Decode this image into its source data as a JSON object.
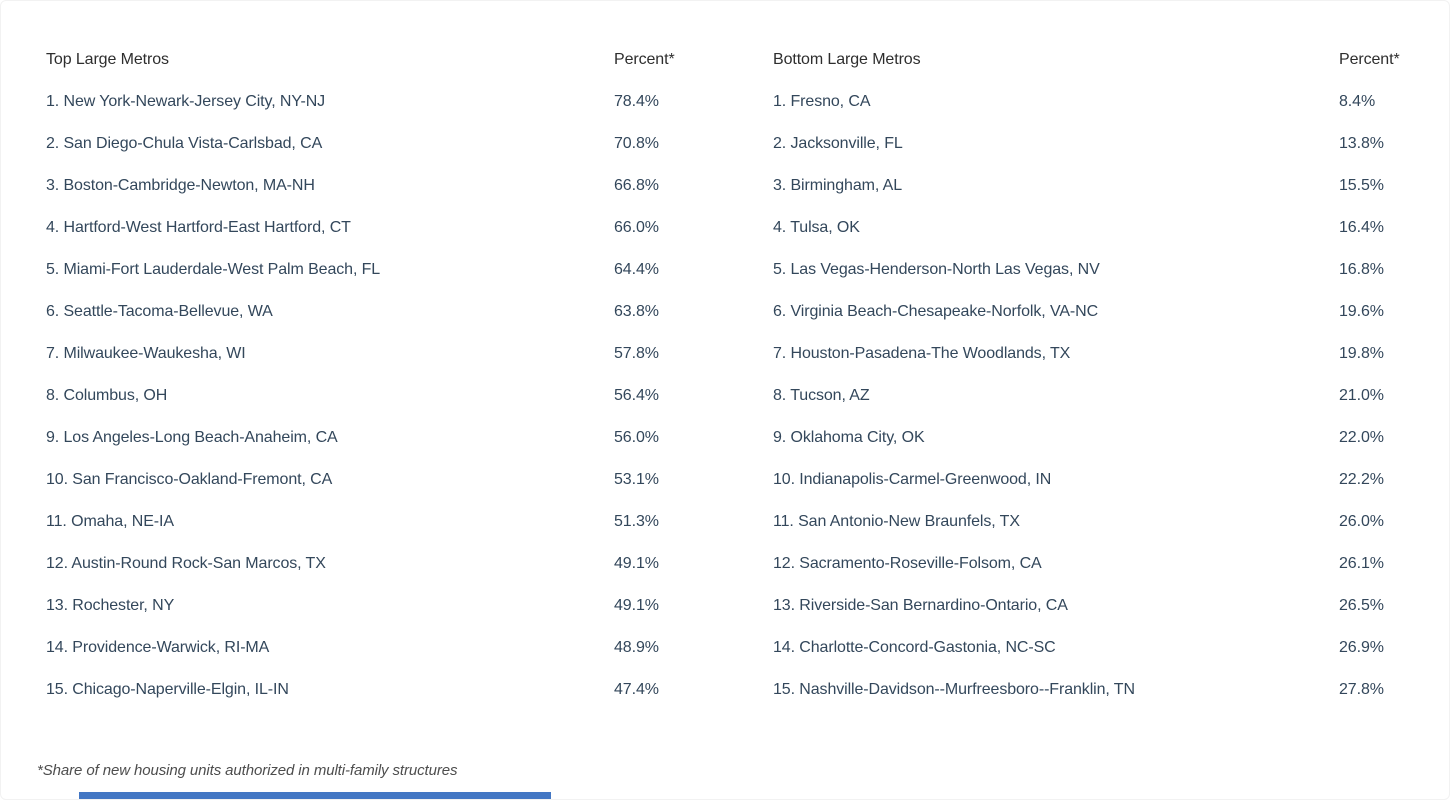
{
  "footnote": "*Share of new housing units authorized in multi-family structures",
  "colors": {
    "row_text": "#33475b",
    "header_text": "#2e2e2e",
    "footnote_text": "#4d4d4d",
    "accent_bar": "#4377c4",
    "background": "#ffffff"
  },
  "chart_data": [
    {
      "type": "table",
      "title": "Top Large Metros",
      "columns": [
        "Top Large Metros",
        "Percent*"
      ],
      "ylabel": "Share of new housing units authorized in multi-family structures (%)",
      "rows": [
        {
          "label": "1. New York-Newark-Jersey City, NY-NJ",
          "percent": "78.4%",
          "value": 78.4
        },
        {
          "label": "2. San Diego-Chula Vista-Carlsbad, CA",
          "percent": "70.8%",
          "value": 70.8
        },
        {
          "label": "3. Boston-Cambridge-Newton, MA-NH",
          "percent": "66.8%",
          "value": 66.8
        },
        {
          "label": "4. Hartford-West Hartford-East Hartford, CT",
          "percent": "66.0%",
          "value": 66.0
        },
        {
          "label": "5. Miami-Fort Lauderdale-West Palm Beach, FL",
          "percent": "64.4%",
          "value": 64.4
        },
        {
          "label": "6. Seattle-Tacoma-Bellevue, WA",
          "percent": "63.8%",
          "value": 63.8
        },
        {
          "label": "7. Milwaukee-Waukesha, WI",
          "percent": "57.8%",
          "value": 57.8
        },
        {
          "label": "8. Columbus, OH",
          "percent": "56.4%",
          "value": 56.4
        },
        {
          "label": "9. Los Angeles-Long Beach-Anaheim, CA",
          "percent": "56.0%",
          "value": 56.0
        },
        {
          "label": "10. San Francisco-Oakland-Fremont, CA",
          "percent": "53.1%",
          "value": 53.1
        },
        {
          "label": "11. Omaha, NE-IA",
          "percent": "51.3%",
          "value": 51.3
        },
        {
          "label": "12. Austin-Round Rock-San Marcos, TX",
          "percent": "49.1%",
          "value": 49.1
        },
        {
          "label": "13. Rochester, NY",
          "percent": "49.1%",
          "value": 49.1
        },
        {
          "label": "14. Providence-Warwick, RI-MA",
          "percent": "48.9%",
          "value": 48.9
        },
        {
          "label": "15. Chicago-Naperville-Elgin, IL-IN",
          "percent": "47.4%",
          "value": 47.4
        }
      ]
    },
    {
      "type": "table",
      "title": "Bottom Large Metros",
      "columns": [
        "Bottom Large Metros",
        "Percent*"
      ],
      "ylabel": "Share of new housing units authorized in multi-family structures (%)",
      "rows": [
        {
          "label": "1. Fresno, CA",
          "percent": "8.4%",
          "value": 8.4
        },
        {
          "label": "2. Jacksonville, FL",
          "percent": "13.8%",
          "value": 13.8
        },
        {
          "label": "3. Birmingham, AL",
          "percent": "15.5%",
          "value": 15.5
        },
        {
          "label": "4. Tulsa, OK",
          "percent": "16.4%",
          "value": 16.4
        },
        {
          "label": "5. Las Vegas-Henderson-North Las Vegas, NV",
          "percent": "16.8%",
          "value": 16.8
        },
        {
          "label": "6. Virginia Beach-Chesapeake-Norfolk, VA-NC",
          "percent": "19.6%",
          "value": 19.6
        },
        {
          "label": "7. Houston-Pasadena-The Woodlands, TX",
          "percent": "19.8%",
          "value": 19.8
        },
        {
          "label": "8. Tucson, AZ",
          "percent": "21.0%",
          "value": 21.0
        },
        {
          "label": "9. Oklahoma City, OK",
          "percent": "22.0%",
          "value": 22.0
        },
        {
          "label": "10. Indianapolis-Carmel-Greenwood, IN",
          "percent": "22.2%",
          "value": 22.2
        },
        {
          "label": "11. San Antonio-New Braunfels, TX",
          "percent": "26.0%",
          "value": 26.0
        },
        {
          "label": "12. Sacramento-Roseville-Folsom, CA",
          "percent": "26.1%",
          "value": 26.1
        },
        {
          "label": "13. Riverside-San Bernardino-Ontario, CA",
          "percent": "26.5%",
          "value": 26.5
        },
        {
          "label": "14. Charlotte-Concord-Gastonia, NC-SC",
          "percent": "26.9%",
          "value": 26.9
        },
        {
          "label": "15. Nashville-Davidson--Murfreesboro--Franklin, TN",
          "percent": "27.8%",
          "value": 27.8
        }
      ]
    }
  ]
}
